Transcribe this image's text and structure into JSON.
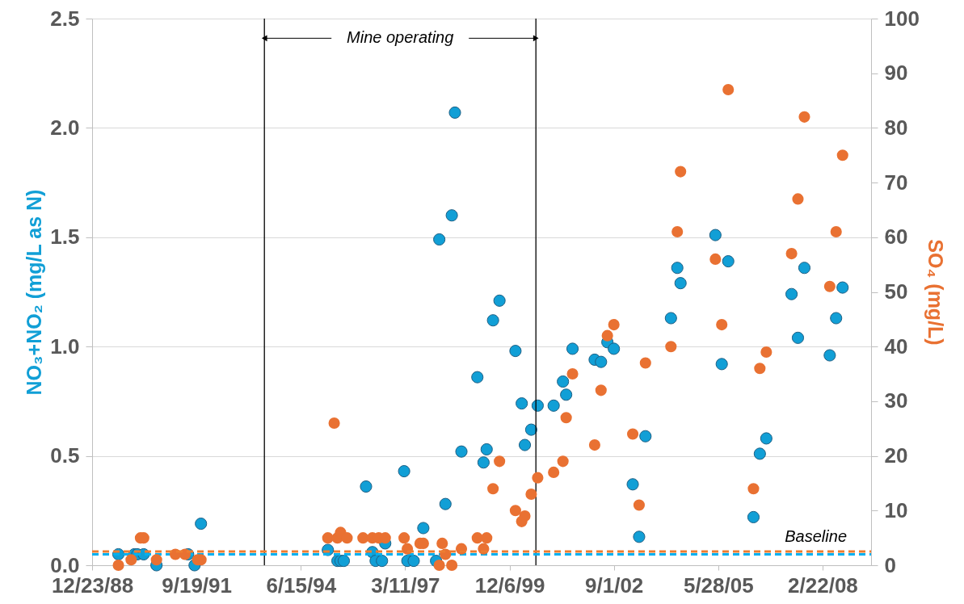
{
  "chart_data": {
    "type": "scatter",
    "ylabel": "NO₃+NO₂ (mg/L as N)",
    "y2label": "SO₄ (mg/L)",
    "xlim": [
      "1988-12-23",
      "2009-06-01"
    ],
    "xticks": [
      {
        "value": "1988-12-23",
        "label": "12/23/88"
      },
      {
        "value": "1991-09-19",
        "label": "9/19/91"
      },
      {
        "value": "1994-06-15",
        "label": "6/15/94"
      },
      {
        "value": "1997-03-11",
        "label": "3/11/97"
      },
      {
        "value": "1999-12-06",
        "label": "12/6/99"
      },
      {
        "value": "2002-09-01",
        "label": "9/1/02"
      },
      {
        "value": "2005-05-28",
        "label": "5/28/05"
      },
      {
        "value": "2008-02-22",
        "label": "2/22/08"
      }
    ],
    "ylim": [
      0,
      2.5
    ],
    "yticks": [
      {
        "value": 0,
        "label": "0.0"
      },
      0.5,
      {
        "value": 1,
        "label": "1.0"
      },
      1.5,
      {
        "value": 2,
        "label": "2.0"
      },
      2.5
    ],
    "y2lim": [
      0,
      100
    ],
    "y2ticks": [
      0,
      10,
      20,
      30,
      40,
      50,
      60,
      70,
      80,
      90,
      100
    ],
    "grid": "y",
    "marker": "circle",
    "annotations": [
      {
        "text": "Mine operating",
        "x": "1993-07-01",
        "y": 2.41
      }
    ],
    "ref_lines": [
      {
        "axis": "x",
        "value": "1993-07-01",
        "color": "#000000"
      },
      {
        "axis": "x",
        "value": "2000-08-15",
        "color": "#000000"
      },
      {
        "axis": "y",
        "value": 0.05,
        "color": "#00b0f0",
        "line_style": "dashed"
      },
      {
        "axis": "y2",
        "value": 2.5,
        "color": "#ed7d31",
        "line_style": "dashed",
        "label": "Baseline"
      }
    ],
    "series": [
      {
        "color": "#119fd6",
        "x": [
          "1989-09",
          "1990-02",
          "1990-03",
          "1990-05",
          "1990-09",
          "1991-07",
          "1991-09",
          "1991-11",
          "1995-03",
          "1995-06",
          "1995-07",
          "1995-08",
          "1996-03",
          "1996-05",
          "1996-06",
          "1996-08",
          "1996-09",
          "1997-03",
          "1997-04",
          "1997-06",
          "1997-09",
          "1998-01",
          "1998-02",
          "1998-04",
          "1998-06",
          "1998-07",
          "1998-09",
          "1999-02",
          "1999-04",
          "1999-05",
          "1999-07",
          "1999-09",
          "2000-02",
          "2000-04",
          "2000-05",
          "2000-07",
          "2000-09",
          "2001-02",
          "2001-05",
          "2001-06",
          "2001-08",
          "2002-03",
          "2002-05",
          "2002-07",
          "2002-09",
          "2003-03",
          "2003-05",
          "2003-07",
          "2004-03",
          "2004-05",
          "2004-06",
          "2005-05",
          "2005-07",
          "2005-09",
          "2006-05",
          "2006-07",
          "2006-09",
          "2007-05",
          "2007-07",
          "2007-09",
          "2008-05",
          "2008-07",
          "2008-09"
        ],
        "values": [
          0.05,
          0.05,
          0.05,
          0.05,
          0,
          0.05,
          0,
          0.19,
          0.07,
          0.02,
          0.02,
          0.02,
          0.36,
          0.06,
          0.02,
          0.02,
          0.1,
          0.43,
          0.02,
          0.02,
          0.17,
          0.02,
          1.49,
          0.28,
          1.6,
          2.07,
          0.52,
          0.86,
          0.47,
          0.53,
          1.12,
          1.21,
          0.98,
          0.74,
          0.55,
          0.62,
          0.73,
          0.73,
          0.84,
          0.78,
          0.99,
          0.94,
          0.93,
          1.02,
          0.99,
          0.37,
          0.13,
          0.59,
          1.13,
          1.36,
          1.29,
          1.51,
          0.92,
          1.39,
          0.22,
          0.51,
          0.58,
          1.24,
          1.04,
          1.36,
          0.96,
          1.13,
          1.27
        ]
      },
      {
        "color": "#e97132",
        "axis": "y2",
        "x": [
          "1989-09",
          "1990-01",
          "1990-04",
          "1990-05",
          "1990-09",
          "1991-03",
          "1991-06",
          "1991-10",
          "1991-11",
          "1995-03",
          "1995-05",
          "1995-06",
          "1995-07",
          "1995-09",
          "1996-02",
          "1996-05",
          "1996-07",
          "1996-09",
          "1997-03",
          "1997-04",
          "1997-08",
          "1997-09",
          "1998-02",
          "1998-03",
          "1998-04",
          "1998-06",
          "1998-09",
          "1999-02",
          "1999-04",
          "1999-05",
          "1999-07",
          "1999-09",
          "2000-02",
          "2000-04",
          "2000-05",
          "2000-07",
          "2000-09",
          "2001-02",
          "2001-05",
          "2001-06",
          "2001-08",
          "2002-03",
          "2002-05",
          "2002-07",
          "2002-09",
          "2003-03",
          "2003-05",
          "2003-07",
          "2004-03",
          "2004-05",
          "2004-06",
          "2005-05",
          "2005-07",
          "2005-09",
          "2006-05",
          "2006-07",
          "2006-09",
          "2007-05",
          "2007-07",
          "2007-09",
          "2008-05",
          "2008-07",
          "2008-09"
        ],
        "values": [
          0,
          1,
          5,
          5,
          1,
          2,
          2,
          1,
          1,
          5,
          26,
          5,
          6,
          5,
          5,
          5,
          5,
          5,
          5,
          3,
          4,
          4,
          0,
          4,
          2,
          0,
          3,
          5,
          3,
          5,
          14,
          19,
          10,
          8,
          9,
          13,
          16,
          17,
          19,
          27,
          35,
          22,
          32,
          42,
          44,
          24,
          11,
          37,
          40,
          61,
          72,
          56,
          44,
          87,
          14,
          36,
          39,
          57,
          67,
          82,
          51,
          61,
          75
        ]
      }
    ]
  }
}
